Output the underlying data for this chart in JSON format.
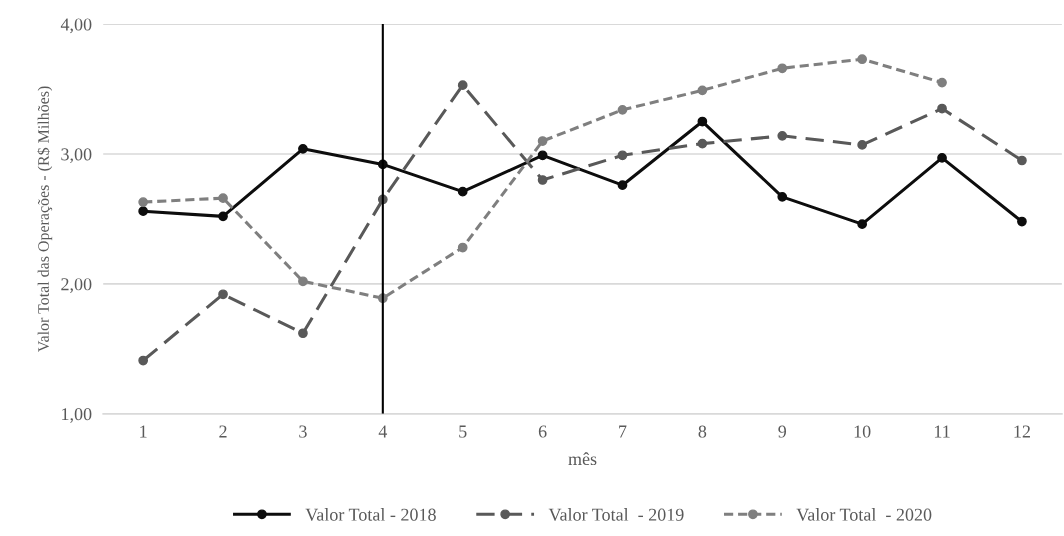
{
  "chart_data": {
    "type": "line",
    "xlabel": "mês",
    "ylabel": "Valor Total das Operações - (R$ Milhões)",
    "x": [
      1,
      2,
      3,
      4,
      5,
      6,
      7,
      8,
      9,
      10,
      11,
      12
    ],
    "xlim": [
      0.5,
      12.5
    ],
    "xticks": [
      1,
      2,
      3,
      4,
      5,
      6,
      7,
      8,
      9,
      10,
      11,
      12
    ],
    "ylim": [
      1,
      4
    ],
    "yticks": [
      {
        "value": 1,
        "label": "1,00"
      },
      {
        "value": 2,
        "label": "2,00"
      },
      {
        "value": 3,
        "label": "3,00"
      },
      {
        "value": 4,
        "label": "4,00"
      }
    ],
    "grid": "y",
    "legend": "bottom",
    "marker": "circle",
    "series": [
      {
        "name": "Valor Total - 2018",
        "color": "#0d0d0d",
        "line_style": "solid",
        "values": [
          2.56,
          2.52,
          3.04,
          2.92,
          2.71,
          2.99,
          2.76,
          3.25,
          2.67,
          2.46,
          2.97,
          2.48
        ]
      },
      {
        "name": "Valor Total  - 2019",
        "color": "#595959",
        "line_style": "dashed",
        "values": [
          1.41,
          1.92,
          1.62,
          2.65,
          3.53,
          2.8,
          2.99,
          3.08,
          3.14,
          3.07,
          3.35,
          2.95
        ]
      },
      {
        "name": "Valor Total  - 2020",
        "color": "#7f7f7f",
        "line_style": "dotted",
        "values": [
          2.63,
          2.66,
          2.02,
          1.89,
          2.28,
          3.1,
          3.34,
          3.49,
          3.66,
          3.73,
          3.55,
          null
        ]
      }
    ],
    "ref_lines": [
      {
        "axis": "x",
        "value": 4,
        "color": "#000000",
        "line_style": "solid"
      }
    ]
  }
}
